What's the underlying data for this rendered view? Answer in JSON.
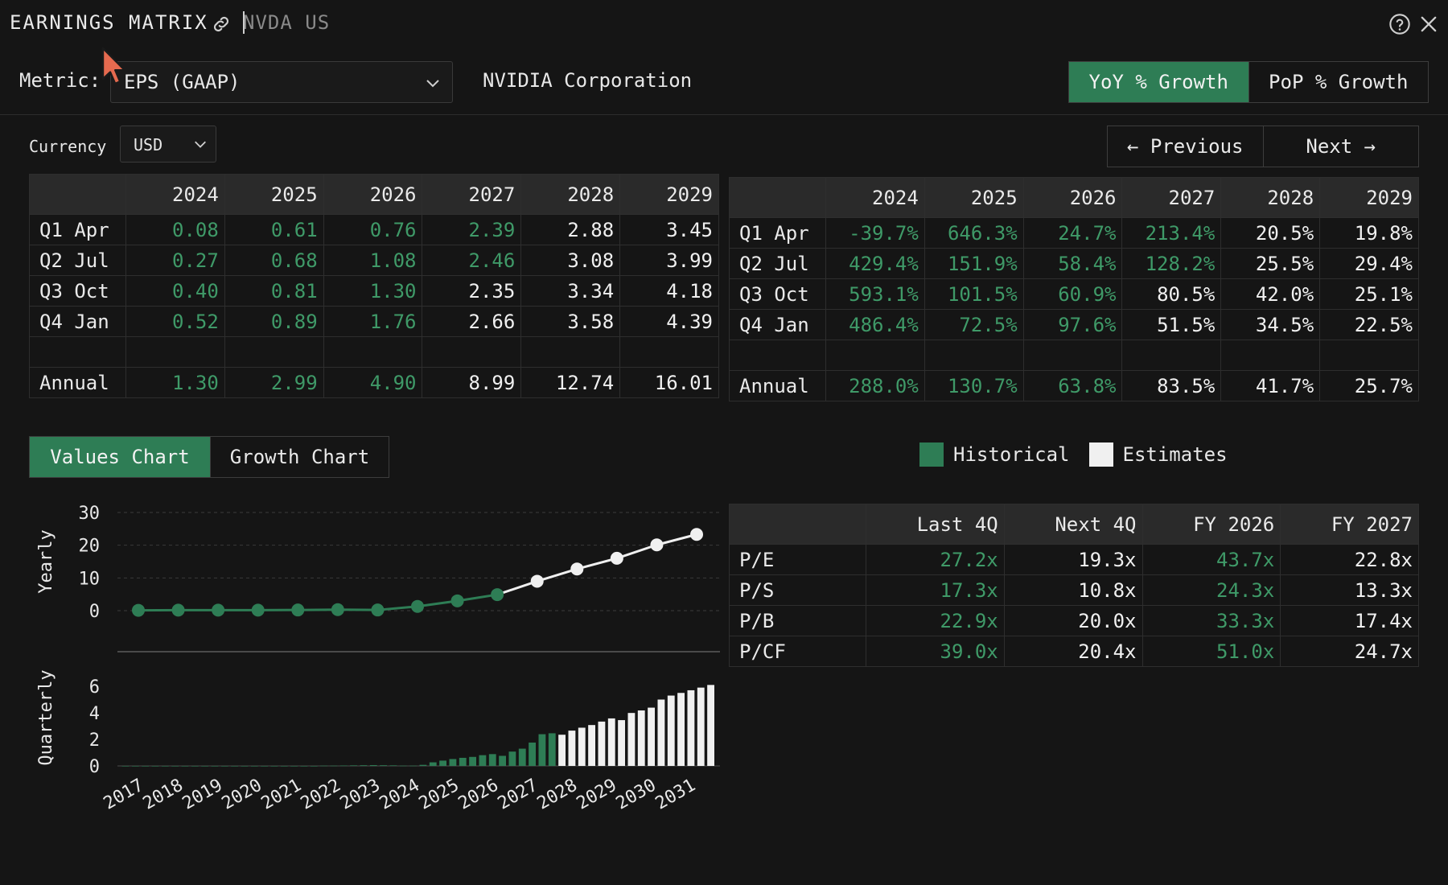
{
  "header": {
    "title": "EARNINGS MATRIX",
    "ticker": "NVDA US"
  },
  "controls": {
    "metric_label": "Metric:",
    "metric_value": "EPS (GAAP)",
    "company": "NVIDIA Corporation",
    "growth_tabs": [
      "YoY % Growth",
      "PoP % Growth"
    ],
    "currency_label": "Currency",
    "currency_value": "USD",
    "prev_label": "← Previous",
    "next_label": "Next →"
  },
  "values_table": {
    "columns": [
      "2024",
      "2025",
      "2026",
      "2027",
      "2028",
      "2029"
    ],
    "rows": [
      {
        "label": "Q1 Apr",
        "cells": [
          "0.08",
          "0.61",
          "0.76",
          "2.39",
          "2.88",
          "3.45"
        ]
      },
      {
        "label": "Q2 Jul",
        "cells": [
          "0.27",
          "0.68",
          "1.08",
          "2.46",
          "3.08",
          "3.99"
        ]
      },
      {
        "label": "Q3 Oct",
        "cells": [
          "0.40",
          "0.81",
          "1.30",
          "2.35",
          "3.34",
          "4.18"
        ]
      },
      {
        "label": "Q4 Jan",
        "cells": [
          "0.52",
          "0.89",
          "1.76",
          "2.66",
          "3.58",
          "4.39"
        ]
      },
      {
        "label": "",
        "cells": [
          "",
          "",
          "",
          "",
          "",
          ""
        ]
      },
      {
        "label": "Annual",
        "cells": [
          "1.30",
          "2.99",
          "4.90",
          "8.99",
          "12.74",
          "16.01"
        ]
      }
    ],
    "historical_flags": [
      [
        true,
        true,
        true,
        true,
        false,
        false
      ],
      [
        true,
        true,
        true,
        true,
        false,
        false
      ],
      [
        true,
        true,
        true,
        false,
        false,
        false
      ],
      [
        true,
        true,
        true,
        false,
        false,
        false
      ],
      [
        false,
        false,
        false,
        false,
        false,
        false
      ],
      [
        true,
        true,
        true,
        false,
        false,
        false
      ]
    ]
  },
  "growth_table": {
    "columns": [
      "2024",
      "2025",
      "2026",
      "2027",
      "2028",
      "2029"
    ],
    "rows": [
      {
        "label": "Q1 Apr",
        "cells": [
          "-39.7%",
          "646.3%",
          "24.7%",
          "213.4%",
          "20.5%",
          "19.8%"
        ]
      },
      {
        "label": "Q2 Jul",
        "cells": [
          "429.4%",
          "151.9%",
          "58.4%",
          "128.2%",
          "25.5%",
          "29.4%"
        ]
      },
      {
        "label": "Q3 Oct",
        "cells": [
          "593.1%",
          "101.5%",
          "60.9%",
          "80.5%",
          "42.0%",
          "25.1%"
        ]
      },
      {
        "label": "Q4 Jan",
        "cells": [
          "486.4%",
          "72.5%",
          "97.6%",
          "51.5%",
          "34.5%",
          "22.5%"
        ]
      },
      {
        "label": "",
        "cells": [
          "",
          "",
          "",
          "",
          "",
          ""
        ]
      },
      {
        "label": "Annual",
        "cells": [
          "288.0%",
          "130.7%",
          "63.8%",
          "83.5%",
          "41.7%",
          "25.7%"
        ]
      }
    ],
    "historical_flags": [
      [
        true,
        true,
        true,
        true,
        false,
        false
      ],
      [
        true,
        true,
        true,
        true,
        false,
        false
      ],
      [
        true,
        true,
        true,
        false,
        false,
        false
      ],
      [
        true,
        true,
        true,
        false,
        false,
        false
      ],
      [
        false,
        false,
        false,
        false,
        false,
        false
      ],
      [
        true,
        true,
        true,
        false,
        false,
        false
      ]
    ]
  },
  "chart_tabs": [
    "Values Chart",
    "Growth Chart"
  ],
  "legend": {
    "historical": "Historical",
    "estimates": "Estimates"
  },
  "ratios_table": {
    "columns": [
      "Last 4Q",
      "Next 4Q",
      "FY 2026",
      "FY 2027"
    ],
    "rows": [
      {
        "label": "P/E",
        "cells": [
          "27.2x",
          "19.3x",
          "43.7x",
          "22.8x"
        ]
      },
      {
        "label": "P/S",
        "cells": [
          "17.3x",
          "10.8x",
          "24.3x",
          "13.3x"
        ]
      },
      {
        "label": "P/B",
        "cells": [
          "22.9x",
          "20.0x",
          "33.3x",
          "17.4x"
        ]
      },
      {
        "label": "P/CF",
        "cells": [
          "39.0x",
          "20.4x",
          "51.0x",
          "24.7x"
        ]
      }
    ],
    "historical_flags": [
      [
        true,
        false,
        true,
        false
      ],
      [
        true,
        false,
        true,
        false
      ],
      [
        true,
        false,
        true,
        false
      ],
      [
        true,
        false,
        true,
        false
      ]
    ]
  },
  "colors": {
    "historical": "#2e7d55",
    "historical_text": "#3f9a68",
    "estimates": "#f0f0f0",
    "background": "#151515"
  },
  "icons": [
    "link-icon",
    "help-icon",
    "close-icon",
    "chevron-down-icon",
    "cursor-icon"
  ],
  "chart_data": [
    {
      "type": "line",
      "ylabel": "Yearly",
      "yticks": [
        0,
        10,
        20,
        30
      ],
      "ylim": [
        0,
        30
      ],
      "x": [
        "2017",
        "2018",
        "2019",
        "2020",
        "2021",
        "2022",
        "2023",
        "2024",
        "2025",
        "2026",
        "2027",
        "2028",
        "2029",
        "2030",
        "2031"
      ],
      "values": [
        0.1,
        0.15,
        0.15,
        0.15,
        0.2,
        0.3,
        0.2,
        1.3,
        2.99,
        4.9,
        8.99,
        12.74,
        16.01,
        20.1,
        23.3
      ],
      "historical_count": 10,
      "grid": true
    },
    {
      "type": "bar",
      "ylabel": "Quarterly",
      "yticks": [
        0,
        2,
        4,
        6
      ],
      "ylim": [
        0,
        6
      ],
      "xticks": [
        "2017",
        "2018",
        "2019",
        "2020",
        "2021",
        "2022",
        "2023",
        "2024",
        "2025",
        "2026",
        "2027",
        "2028",
        "2029",
        "2030",
        "2031"
      ],
      "values": [
        0,
        0,
        0,
        0,
        0,
        0,
        0,
        0,
        0,
        0,
        0,
        0,
        0,
        0,
        0,
        0,
        0,
        0,
        0,
        0,
        0.02,
        0.02,
        0.03,
        0.04,
        0.05,
        0.06,
        0.05,
        0.04,
        0.02,
        0.02,
        0.08,
        0.27,
        0.4,
        0.52,
        0.61,
        0.68,
        0.81,
        0.89,
        0.76,
        1.08,
        1.3,
        1.76,
        2.39,
        2.46,
        2.35,
        2.66,
        2.88,
        3.08,
        3.34,
        3.58,
        3.45,
        3.99,
        4.18,
        4.39,
        5.0,
        5.3,
        5.5,
        5.7,
        5.9,
        6.1
      ],
      "historical_count": 44
    }
  ]
}
